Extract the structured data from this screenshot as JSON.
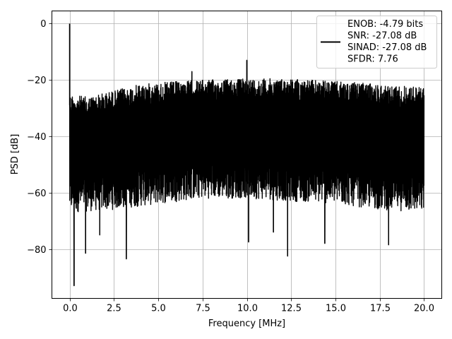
{
  "chart_data": {
    "type": "line",
    "title": "",
    "xlabel": "Frequency [MHz]",
    "ylabel": "PSD [dB]",
    "xlim": [
      -1.0,
      21.0
    ],
    "ylim": [
      -97.5,
      4.5
    ],
    "x_ticks": [
      0.0,
      2.5,
      5.0,
      7.5,
      10.0,
      12.5,
      15.0,
      17.5,
      20.0
    ],
    "x_tick_labels": [
      "0.0",
      "2.5",
      "5.0",
      "7.5",
      "10.0",
      "12.5",
      "15.0",
      "17.5",
      "20.0"
    ],
    "y_ticks": [
      0,
      -20,
      -40,
      -60,
      -80
    ],
    "y_tick_labels": [
      "0",
      "−20",
      "−40",
      "−60",
      "−80"
    ],
    "grid": true,
    "legend_position": "top-right",
    "line_color": "#000000",
    "series": [
      {
        "name": "ENOB: -4.79 bits\nSNR: -27.08 dB\nSINAD: -27.08 dB\nSFDR: 7.76",
        "legend_lines": [
          "ENOB: -4.79 bits",
          "SNR: -27.08 dB",
          "SINAD: -27.08 dB",
          "SFDR: 7.76"
        ],
        "x_range": [
          0.0,
          20.0
        ],
        "noise_floor_db": -45,
        "upper_envelope_db": [
          [
            0.0,
            -25
          ],
          [
            1.0,
            -26
          ],
          [
            2.0,
            -24.5
          ],
          [
            3.0,
            -23
          ],
          [
            4.0,
            -21.5
          ],
          [
            5.0,
            -21
          ],
          [
            6.0,
            -20.5
          ],
          [
            7.5,
            -20
          ],
          [
            10.0,
            -19.5
          ],
          [
            12.5,
            -19.5
          ],
          [
            15.0,
            -20.5
          ],
          [
            17.5,
            -21.5
          ],
          [
            20.0,
            -22.5
          ]
        ],
        "lower_envelope_db": [
          [
            0.0,
            -67
          ],
          [
            2.5,
            -66
          ],
          [
            5.0,
            -64
          ],
          [
            7.5,
            -62
          ],
          [
            10.0,
            -62
          ],
          [
            12.5,
            -63
          ],
          [
            15.0,
            -64
          ],
          [
            17.5,
            -66
          ],
          [
            20.0,
            -67
          ]
        ],
        "peaks": [
          {
            "x": 0.0,
            "y": 0.0
          },
          {
            "x": 6.9,
            "y": -17.0
          },
          {
            "x": 10.0,
            "y": -13.0
          }
        ],
        "dips": [
          {
            "x": 0.25,
            "y": -93.0
          },
          {
            "x": 0.9,
            "y": -81.5
          },
          {
            "x": 3.2,
            "y": -83.5
          },
          {
            "x": 12.3,
            "y": -82.5
          },
          {
            "x": 10.1,
            "y": -77.5
          },
          {
            "x": 18.0,
            "y": -78.5
          },
          {
            "x": 14.4,
            "y": -78.0
          },
          {
            "x": 1.7,
            "y": -75.0
          },
          {
            "x": 11.5,
            "y": -74.0
          }
        ]
      }
    ]
  }
}
